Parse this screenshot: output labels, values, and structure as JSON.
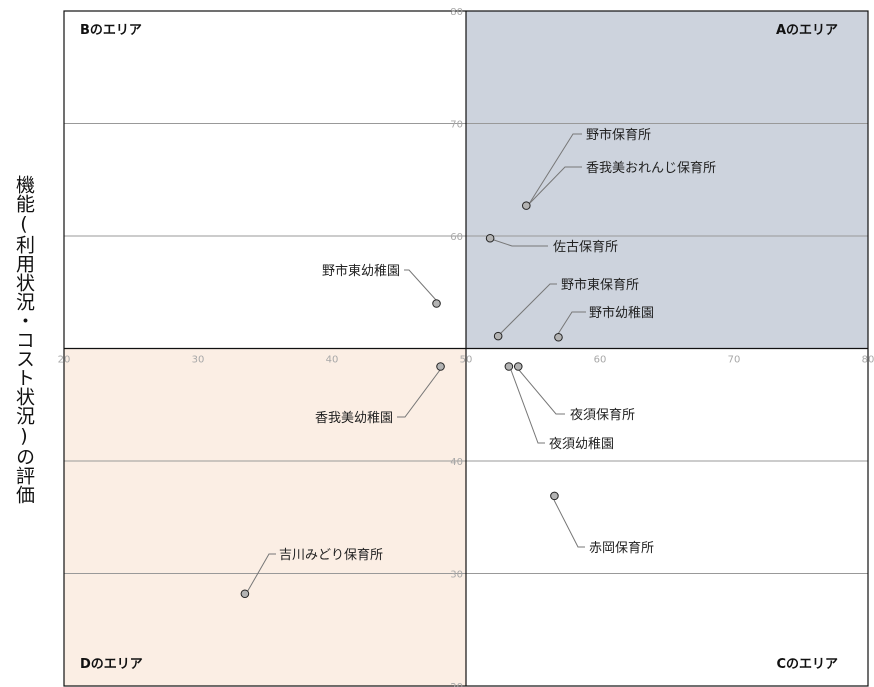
{
  "chart_data": {
    "type": "scatter",
    "title": "",
    "xlabel": "",
    "ylabel": "機能(利用状況・コスト状況)の評価",
    "xlim": [
      20,
      80
    ],
    "ylim": [
      20,
      80
    ],
    "x_ticks": [
      20,
      30,
      40,
      50,
      60,
      70,
      80
    ],
    "y_ticks": [
      20,
      30,
      40,
      50,
      60,
      70,
      80
    ],
    "grid": "horizontal",
    "quadrants": [
      {
        "label": "Aのエリア",
        "x": [
          50,
          80
        ],
        "y": [
          50,
          80
        ],
        "fill": "#cdd3dd"
      },
      {
        "label": "Bのエリア",
        "x": [
          20,
          50
        ],
        "y": [
          50,
          80
        ],
        "fill": "#ffffff"
      },
      {
        "label": "Cのエリア",
        "x": [
          50,
          80
        ],
        "y": [
          20,
          50
        ],
        "fill": "#ffffff"
      },
      {
        "label": "Dのエリア",
        "x": [
          20,
          50
        ],
        "y": [
          20,
          50
        ],
        "fill": "#fbeee4"
      }
    ],
    "points": [
      {
        "x": 54.5,
        "y": 62.7,
        "labels": [
          "野市保育所",
          "香我美おれんじ保育所"
        ]
      },
      {
        "x": 51.8,
        "y": 59.8,
        "labels": [
          "佐古保育所"
        ]
      },
      {
        "x": 47.8,
        "y": 54.0,
        "labels": [
          "野市東幼稚園"
        ]
      },
      {
        "x": 52.4,
        "y": 51.1,
        "labels": [
          "野市東保育所"
        ]
      },
      {
        "x": 56.9,
        "y": 51.0,
        "labels": [
          "野市幼稚園"
        ]
      },
      {
        "x": 48.1,
        "y": 48.4,
        "labels": [
          "香我美幼稚園"
        ]
      },
      {
        "x": 53.2,
        "y": 48.4,
        "labels": [
          "夜須幼稚園"
        ]
      },
      {
        "x": 53.9,
        "y": 48.4,
        "labels": [
          "夜須保育所"
        ]
      },
      {
        "x": 56.6,
        "y": 36.9,
        "labels": [
          "赤岡保育所"
        ]
      },
      {
        "x": 33.5,
        "y": 28.2,
        "labels": [
          "吉川みどり保育所"
        ]
      }
    ]
  },
  "colors": {
    "point_fill": "#b3b3b3",
    "point_stroke": "#222222",
    "grid": "#999999",
    "leader": "#777777",
    "axis": "#111111",
    "tick_text": "#a8a8a8"
  }
}
